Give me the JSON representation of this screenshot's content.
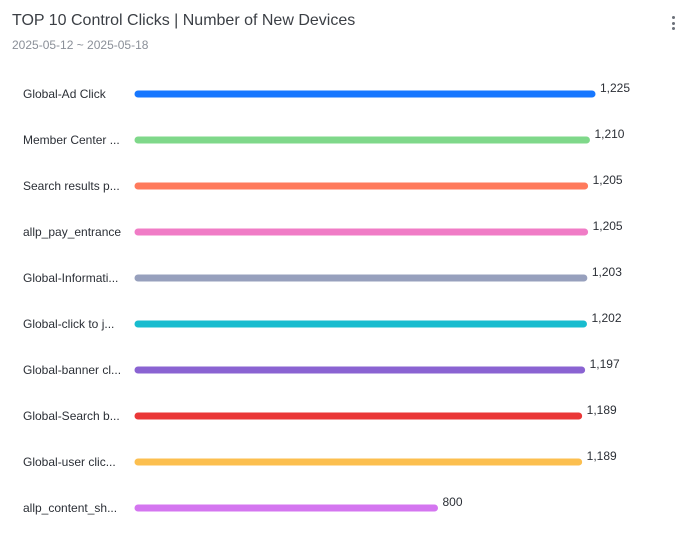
{
  "header": {
    "title": "TOP 10 Control Clicks | Number of New Devices",
    "date_range": "2025-05-12 ~ 2025-05-18"
  },
  "chart_data": {
    "type": "bar",
    "orientation": "horizontal",
    "title": "TOP 10 Control Clicks | Number of New Devices",
    "subtitle": "2025-05-12 ~ 2025-05-18",
    "categories": [
      "Global-Ad Click",
      "Member Center ...",
      "Search results p...",
      "allp_pay_entrance",
      "Global-Informati...",
      "Global-click to j...",
      "Global-banner cl...",
      "Global-Search b...",
      "Global-user clic...",
      "allp_content_sh..."
    ],
    "values": [
      1225,
      1210,
      1205,
      1205,
      1203,
      1202,
      1197,
      1189,
      1189,
      800
    ],
    "value_labels": [
      "1,225",
      "1,210",
      "1,205",
      "1,205",
      "1,203",
      "1,202",
      "1,197",
      "1,189",
      "1,189",
      "800"
    ],
    "colors": [
      "#1677ff",
      "#7fd88a",
      "#ff7a5c",
      "#f07cc6",
      "#97a0bd",
      "#18bccf",
      "#8a63d2",
      "#ea3737",
      "#fcbf4f",
      "#d476f0"
    ],
    "xlim": [
      0,
      1225
    ],
    "grid": false,
    "legend": "none"
  }
}
